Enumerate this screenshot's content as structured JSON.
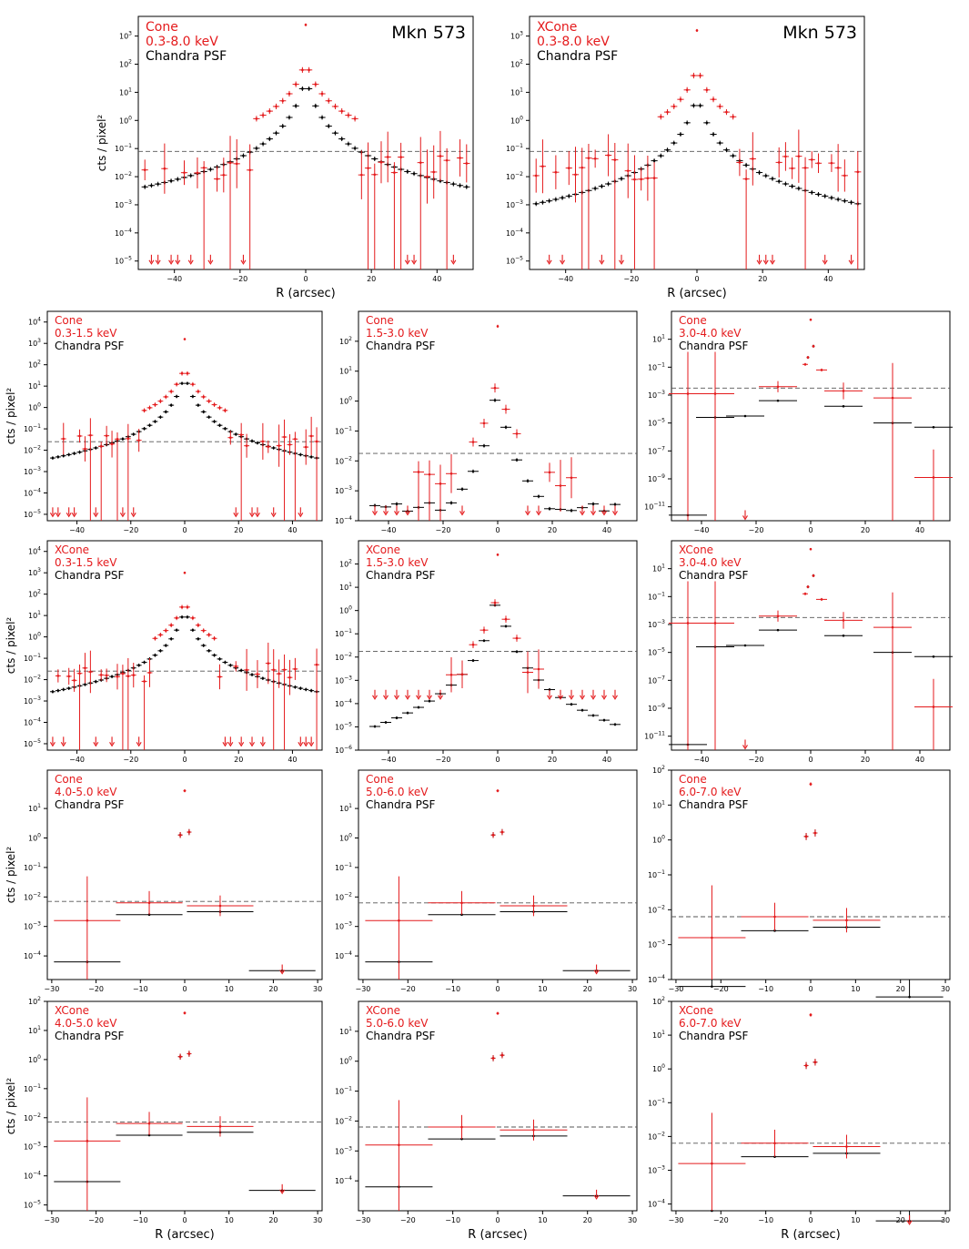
{
  "figure": {
    "common_xlabel": "R (arcsec)",
    "common_ylabel": "cts / pixel²",
    "colors": {
      "source": "#e41a1c",
      "psf": "#000000",
      "background": "#555555"
    },
    "background_line": "dashed horizontal"
  },
  "chart_data": [
    {
      "id": "p1",
      "type": "scatter",
      "yscale": "log",
      "label_mode": "Cone",
      "label_band": "0.3-8.0 keV",
      "label_psf": "Chandra PSF",
      "object": "Mkn 573",
      "xlim": [
        -51,
        51
      ],
      "ylim_exp": [
        -5.3,
        3.7
      ],
      "xticks": [
        -40,
        -20,
        0,
        20,
        40
      ],
      "yticks_exp": [
        -5,
        -4,
        -3,
        -2,
        -1,
        0,
        1,
        2,
        3
      ],
      "bg_log": -1.1,
      "show_xlabel": true,
      "show_ylabel": true,
      "show_object": true,
      "psf_profile": {
        "kind": "cone",
        "peak": 1.6,
        "floor": -4.9
      },
      "src_profile": {
        "kind": "cone",
        "peak": 2.2
      }
    },
    {
      "id": "p2",
      "type": "scatter",
      "yscale": "log",
      "label_mode": "XCone",
      "label_band": "0.3-8.0 keV",
      "label_psf": "Chandra PSF",
      "object": "Mkn 573",
      "xlim": [
        -51,
        51
      ],
      "ylim_exp": [
        -5.3,
        3.7
      ],
      "xticks": [
        -40,
        -20,
        0,
        20,
        40
      ],
      "yticks_exp": [
        -5,
        -4,
        -3,
        -2,
        -1,
        0,
        1,
        2,
        3
      ],
      "bg_log": -1.1,
      "show_xlabel": true,
      "show_ylabel": false,
      "show_object": true,
      "psf_profile": {
        "kind": "cone",
        "peak": 1.0,
        "floor": -4.6
      },
      "src_profile": {
        "kind": "xcone",
        "peak": 2.0
      }
    },
    {
      "id": "p3",
      "type": "scatter",
      "yscale": "log",
      "label_mode": "Cone",
      "label_band": "0.3-1.5 keV",
      "label_psf": "Chandra PSF",
      "xlim": [
        -51,
        51
      ],
      "ylim_exp": [
        -5.3,
        4.5
      ],
      "xticks": [
        -40,
        -20,
        0,
        20,
        40
      ],
      "yticks_exp": [
        -5,
        -4,
        -3,
        -2,
        -1,
        0,
        1,
        2,
        3,
        4
      ],
      "bg_log": -1.6,
      "show_xlabel": false,
      "show_ylabel": true,
      "psf_profile": {
        "kind": "cone",
        "peak": 1.6,
        "floor": -4.8
      },
      "src_profile": {
        "kind": "cone",
        "peak": 2.0
      }
    },
    {
      "id": "p4",
      "type": "scatter",
      "yscale": "log",
      "label_mode": "Cone",
      "label_band": "1.5-3.0 keV",
      "label_psf": "Chandra PSF",
      "xlim": [
        -51,
        51
      ],
      "ylim_exp": [
        -4.0,
        3.0
      ],
      "xticks": [
        -40,
        -20,
        0,
        20,
        40
      ],
      "yticks_exp": [
        -4,
        -3,
        -2,
        -1,
        0,
        1,
        2
      ],
      "bg_log": -1.75,
      "show_xlabel": false,
      "show_ylabel": false,
      "psf_profile": {
        "kind": "narrow",
        "peak": 0.7,
        "floor": -3.7
      },
      "src_profile": {
        "kind": "sparse",
        "peak": 1.0
      }
    },
    {
      "id": "p5",
      "type": "scatter",
      "yscale": "log",
      "label_mode": "Cone",
      "label_band": "3.0-4.0 keV",
      "label_psf": "Chandra PSF",
      "xlim": [
        -51,
        51
      ],
      "ylim_exp": [
        -12,
        3
      ],
      "xticks": [
        -40,
        -20,
        0,
        20,
        40
      ],
      "yticks_exp": [
        -11,
        -9,
        -7,
        -5,
        -3,
        -1,
        1
      ],
      "bg_log": -2.5,
      "show_xlabel": false,
      "show_ylabel": false,
      "psf_profile": {
        "kind": "binned_wide"
      },
      "src_profile": {
        "kind": "binned_wide"
      }
    },
    {
      "id": "p6",
      "type": "scatter",
      "yscale": "log",
      "label_mode": "XCone",
      "label_band": "0.3-1.5 keV",
      "label_psf": "Chandra PSF",
      "xlim": [
        -51,
        51
      ],
      "ylim_exp": [
        -5.3,
        4.5
      ],
      "xticks": [
        -40,
        -20,
        0,
        20,
        40
      ],
      "yticks_exp": [
        -5,
        -4,
        -3,
        -2,
        -1,
        0,
        1,
        2,
        3,
        4
      ],
      "bg_log": -1.6,
      "show_xlabel": false,
      "show_ylabel": true,
      "psf_profile": {
        "kind": "cone",
        "peak": 1.4,
        "floor": -4.9
      },
      "src_profile": {
        "kind": "xcone",
        "peak": 1.8
      }
    },
    {
      "id": "p7",
      "type": "scatter",
      "yscale": "log",
      "label_mode": "XCone",
      "label_band": "1.5-3.0 keV",
      "label_psf": "Chandra PSF",
      "xlim": [
        -51,
        51
      ],
      "ylim_exp": [
        -6.0,
        3.0
      ],
      "xticks": [
        -40,
        -20,
        0,
        20,
        40
      ],
      "yticks_exp": [
        -6,
        -5,
        -4,
        -3,
        -2,
        -1,
        0,
        1,
        2
      ],
      "bg_log": -1.75,
      "show_xlabel": false,
      "show_ylabel": false,
      "psf_profile": {
        "kind": "narrow",
        "peak": 0.9,
        "floor": -5.4
      },
      "src_profile": {
        "kind": "sparse",
        "peak": 0.9
      }
    },
    {
      "id": "p8",
      "type": "scatter",
      "yscale": "log",
      "label_mode": "XCone",
      "label_band": "3.0-4.0 keV",
      "label_psf": "Chandra PSF",
      "xlim": [
        -51,
        51
      ],
      "ylim_exp": [
        -12,
        3
      ],
      "xticks": [
        -40,
        -20,
        0,
        20,
        40
      ],
      "yticks_exp": [
        -11,
        -9,
        -7,
        -5,
        -3,
        -1,
        1
      ],
      "bg_log": -2.5,
      "show_xlabel": false,
      "show_ylabel": false,
      "psf_profile": {
        "kind": "binned_wide"
      },
      "src_profile": {
        "kind": "binned_wide"
      }
    },
    {
      "id": "p9",
      "type": "scatter",
      "yscale": "log",
      "label_mode": "Cone",
      "label_band": "4.0-5.0 keV",
      "label_psf": "Chandra PSF",
      "xlim": [
        -31,
        31
      ],
      "ylim_exp": [
        -4.8,
        2.3
      ],
      "xticks": [
        -30,
        -20,
        -10,
        0,
        10,
        20,
        30
      ],
      "yticks_exp": [
        -4,
        -3,
        -2,
        -1,
        0,
        1
      ],
      "bg_log": -2.15,
      "show_xlabel": false,
      "show_ylabel": true,
      "psf_profile": {
        "kind": "binned_narrow"
      },
      "src_profile": {
        "kind": "binned_narrow"
      }
    },
    {
      "id": "p10",
      "type": "scatter",
      "yscale": "log",
      "label_mode": "Cone",
      "label_band": "5.0-6.0 keV",
      "label_psf": "Chandra PSF",
      "xlim": [
        -31,
        31
      ],
      "ylim_exp": [
        -4.8,
        2.3
      ],
      "xticks": [
        -30,
        -20,
        -10,
        0,
        10,
        20,
        30
      ],
      "yticks_exp": [
        -4,
        -3,
        -2,
        -1,
        0,
        1
      ],
      "bg_log": -2.2,
      "show_xlabel": false,
      "show_ylabel": false,
      "psf_profile": {
        "kind": "binned_narrow"
      },
      "src_profile": {
        "kind": "binned_narrow"
      }
    },
    {
      "id": "p11",
      "type": "scatter",
      "yscale": "log",
      "label_mode": "Cone",
      "label_band": "6.0-7.0 keV",
      "label_psf": "Chandra PSF",
      "xlim": [
        -31,
        31
      ],
      "ylim_exp": [
        -4.0,
        2.0
      ],
      "xticks": [
        -30,
        -20,
        -10,
        0,
        10,
        20,
        30
      ],
      "yticks_exp": [
        -4,
        -3,
        -2,
        -1,
        0,
        1,
        2
      ],
      "bg_log": -2.2,
      "show_xlabel": false,
      "show_ylabel": false,
      "psf_profile": {
        "kind": "binned_narrow"
      },
      "src_profile": {
        "kind": "binned_narrow"
      }
    },
    {
      "id": "p12",
      "type": "scatter",
      "yscale": "log",
      "label_mode": "XCone",
      "label_band": "4.0-5.0 keV",
      "label_psf": "Chandra PSF",
      "xlim": [
        -31,
        31
      ],
      "ylim_exp": [
        -5.2,
        2.0
      ],
      "xticks": [
        -30,
        -20,
        -10,
        0,
        10,
        20,
        30
      ],
      "yticks_exp": [
        -5,
        -4,
        -3,
        -2,
        -1,
        0,
        1,
        2
      ],
      "bg_log": -2.15,
      "show_xlabel": true,
      "show_ylabel": true,
      "psf_profile": {
        "kind": "binned_narrow"
      },
      "src_profile": {
        "kind": "binned_narrow"
      }
    },
    {
      "id": "p13",
      "type": "scatter",
      "yscale": "log",
      "label_mode": "XCone",
      "label_band": "5.0-6.0 keV",
      "label_psf": "Chandra PSF",
      "xlim": [
        -31,
        31
      ],
      "ylim_exp": [
        -5.0,
        2.0
      ],
      "xticks": [
        -30,
        -20,
        -10,
        0,
        10,
        20,
        30
      ],
      "yticks_exp": [
        -4,
        -3,
        -2,
        -1,
        0,
        1
      ],
      "bg_log": -2.2,
      "show_xlabel": true,
      "show_ylabel": false,
      "psf_profile": {
        "kind": "binned_narrow"
      },
      "src_profile": {
        "kind": "binned_narrow"
      }
    },
    {
      "id": "p14",
      "type": "scatter",
      "yscale": "log",
      "label_mode": "XCone",
      "label_band": "6.0-7.0 keV",
      "label_psf": "Chandra PSF",
      "xlim": [
        -31,
        31
      ],
      "ylim_exp": [
        -4.2,
        2.0
      ],
      "xticks": [
        -30,
        -20,
        -10,
        0,
        10,
        20,
        30
      ],
      "yticks_exp": [
        -4,
        -3,
        -2,
        -1,
        0,
        1,
        2
      ],
      "bg_log": -2.2,
      "show_xlabel": true,
      "show_ylabel": false,
      "psf_profile": {
        "kind": "binned_narrow"
      },
      "src_profile": {
        "kind": "binned_narrow"
      }
    }
  ]
}
